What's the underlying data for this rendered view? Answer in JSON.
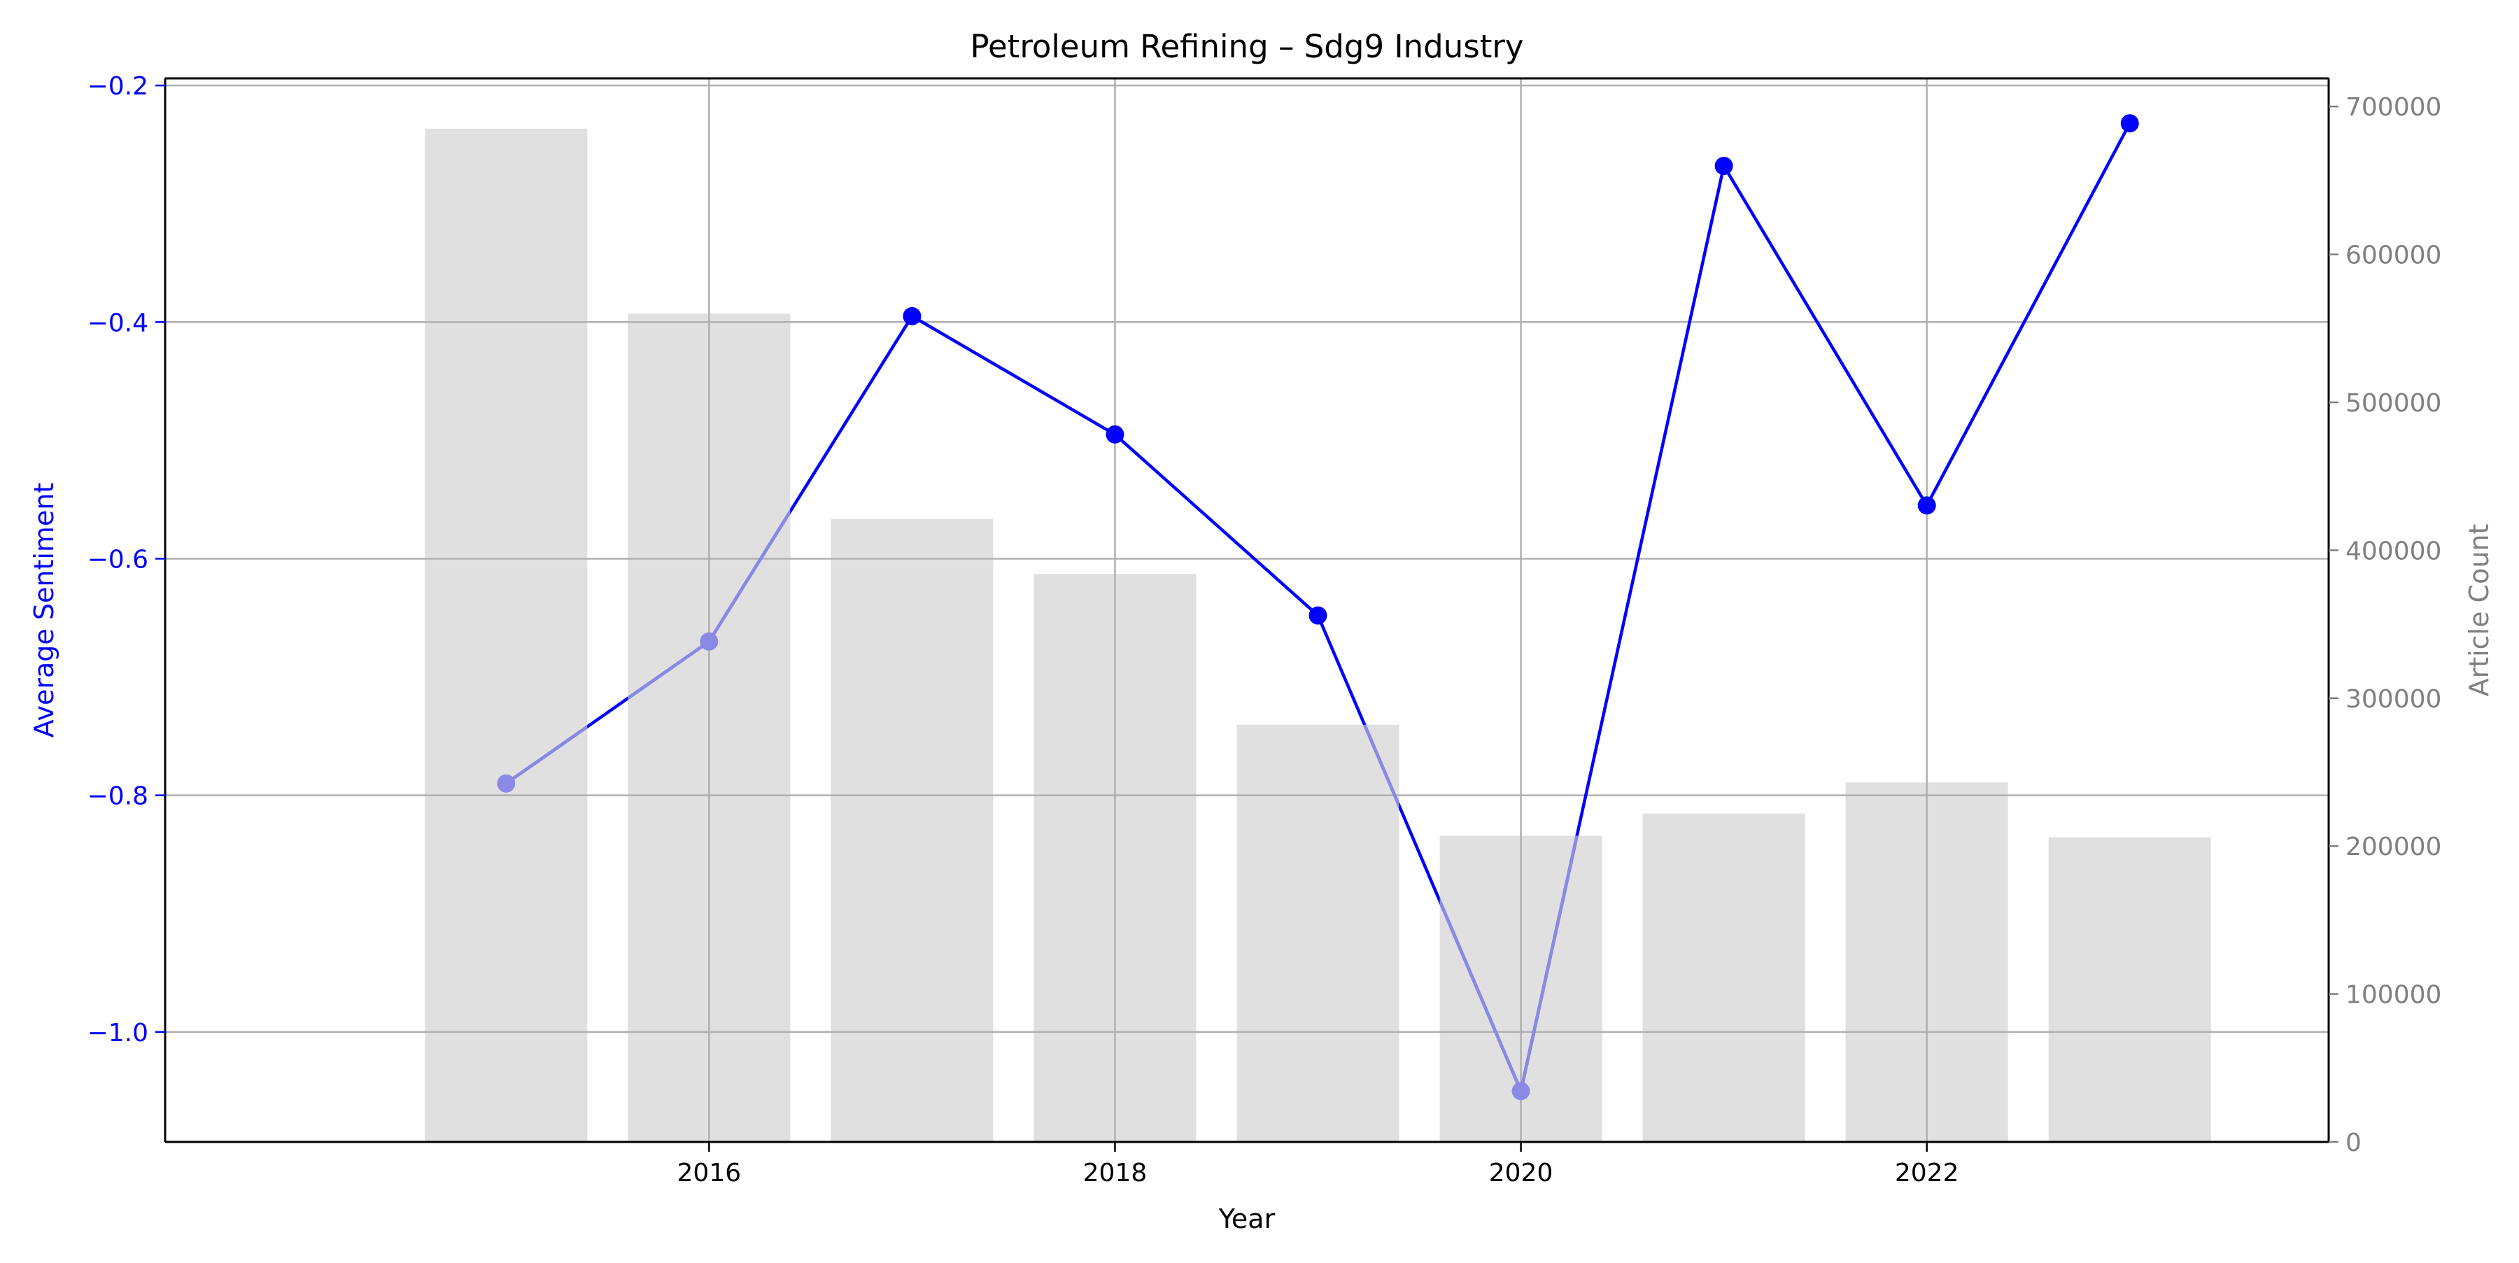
{
  "chart_data": {
    "type": "bar+line",
    "title": "Petroleum Refining – Sdg9 Industry",
    "xlabel": "Year",
    "ylabel_left": "Average Sentiment",
    "ylabel_right": "Article Count",
    "x_ticks": [
      "2016",
      "2018",
      "2020",
      "2022"
    ],
    "y_left_ticks": [
      "−1.0",
      "−0.8",
      "−0.6",
      "−0.4",
      "−0.2"
    ],
    "y_right_ticks": [
      "0",
      "100000",
      "200000",
      "300000",
      "400000",
      "500000",
      "600000",
      "700000"
    ],
    "x_range": [
      2013.32,
      2023.98
    ],
    "y_left_range": [
      -1.093,
      -0.194
    ],
    "y_right_range": [
      0,
      719000
    ],
    "grid": true,
    "bar_color": "#e0e0e0",
    "line_color": "#0000ff",
    "faded_line_color": "#8a8ae6",
    "left_axis_color": "#0000ff",
    "right_axis_color": "#808080",
    "bars": {
      "name": "Article Count",
      "x": [
        2015,
        2016,
        2017,
        2018,
        2019,
        2020,
        2021,
        2022,
        2023
      ],
      "values": [
        685000,
        560000,
        421000,
        384000,
        282000,
        207000,
        222000,
        243000,
        206000
      ]
    },
    "line": {
      "name": "Average Sentiment",
      "x": [
        2015,
        2016,
        2017,
        2018,
        2019,
        2020,
        2021,
        2022,
        2023
      ],
      "values": [
        -0.79,
        -0.67,
        -0.395,
        -0.495,
        -0.648,
        -1.05,
        -0.268,
        -0.555,
        -0.232
      ]
    }
  }
}
